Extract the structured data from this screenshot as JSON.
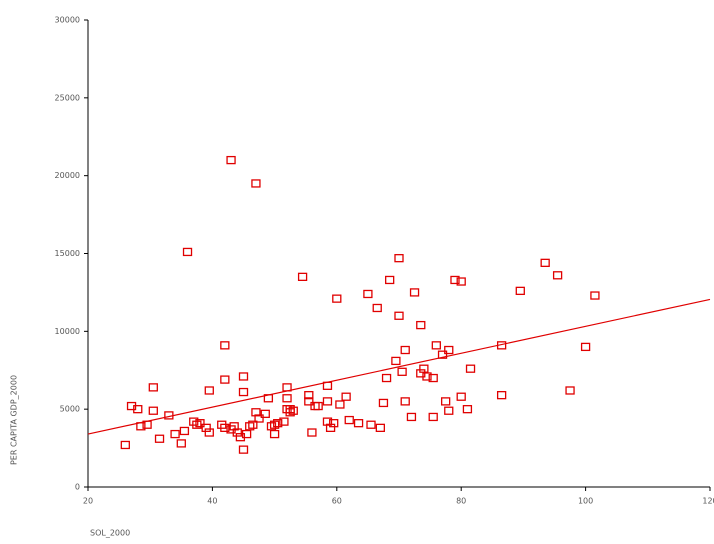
{
  "chart_data": {
    "type": "scatter",
    "x_label": "SOL_2000",
    "y_label": "PER CAPITA GDP_2000",
    "xlim": [
      20,
      120
    ],
    "ylim": [
      0,
      30000
    ],
    "xticks": [
      20,
      40,
      60,
      80,
      100,
      120
    ],
    "yticks": [
      0,
      5000,
      10000,
      15000,
      20000,
      25000,
      30000
    ],
    "color": "#e00000",
    "x": [
      26,
      27,
      28,
      28.5,
      29.5,
      30.5,
      30.5,
      31.5,
      33,
      34,
      35,
      35.5,
      36,
      37,
      37.5,
      38,
      39,
      39.5,
      39.5,
      41.5,
      42,
      42,
      42,
      43,
      43,
      43.5,
      44,
      44.5,
      45,
      45,
      45,
      45.5,
      46,
      46.5,
      47,
      47,
      47.5,
      48.5,
      49,
      49.5,
      50,
      50,
      50.5,
      51.5,
      52,
      52,
      52,
      52.5,
      52.5,
      53,
      54.5,
      55.5,
      56,
      55.5,
      56.5,
      57,
      58.5,
      58.5,
      58.5,
      59,
      59.5,
      60,
      60.5,
      61.5,
      62,
      63.5,
      65,
      65.5,
      66.5,
      67,
      67.5,
      68,
      68.5,
      69.5,
      70,
      70,
      70.5,
      71,
      71,
      72,
      72.5,
      73.5,
      73.5,
      74,
      74.5,
      75.5,
      75.5,
      76,
      77,
      77.5,
      78,
      78,
      79,
      80,
      80,
      81,
      81.5,
      86.5,
      86.5,
      89.5,
      93.5,
      95.5,
      97.5,
      100,
      101.5
    ],
    "y": [
      2700,
      5200,
      5000,
      3900,
      4000,
      4900,
      6400,
      3100,
      4600,
      3400,
      2800,
      3600,
      15100,
      4200,
      4000,
      4100,
      3800,
      3500,
      6200,
      4000,
      3800,
      6900,
      9100,
      21000,
      3700,
      3900,
      3500,
      3200,
      7100,
      6100,
      2400,
      3400,
      3900,
      4000,
      19500,
      4800,
      4400,
      4700,
      5700,
      3900,
      3400,
      4000,
      4100,
      4200,
      6400,
      5700,
      5000,
      4800,
      5000,
      4900,
      13500,
      5900,
      3500,
      5500,
      5200,
      5200,
      6500,
      5500,
      4200,
      3800,
      4100,
      12100,
      5300,
      5800,
      4300,
      4100,
      12400,
      4000,
      11500,
      3800,
      5400,
      7000,
      13300,
      8100,
      11000,
      14700,
      7400,
      5500,
      8800,
      4500,
      12500,
      10400,
      7300,
      7600,
      7100,
      7000,
      4500,
      9100,
      8500,
      5500,
      4900,
      8800,
      13300,
      13200,
      5800,
      5000,
      7600,
      9100,
      5900,
      12600,
      14400,
      13600,
      6200,
      9000,
      12300
    ],
    "trendline": {
      "x": [
        20,
        120
      ],
      "y": [
        3400,
        12050
      ]
    }
  }
}
